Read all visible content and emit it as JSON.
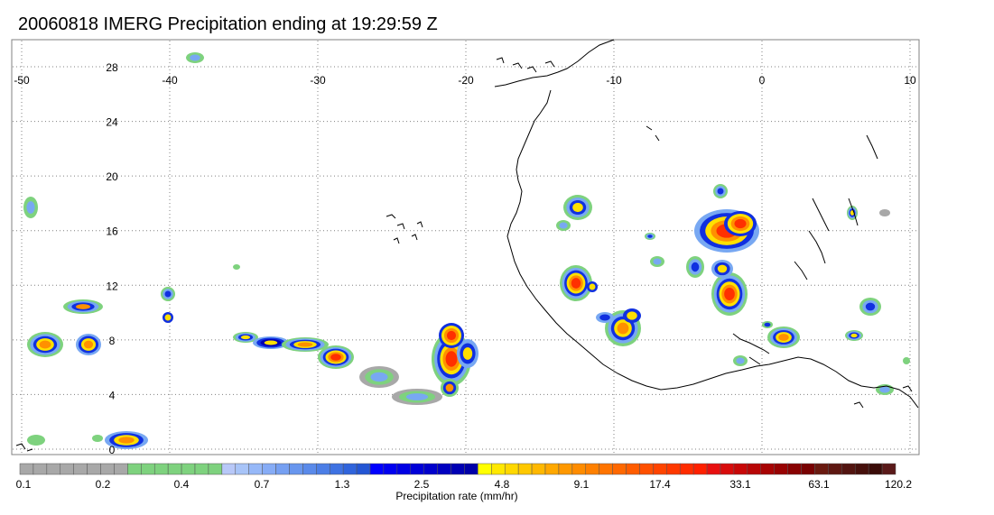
{
  "title": "20060818 IMERG Precipitation ending at 19:29:59 Z",
  "map": {
    "lon_labels": [
      "-50",
      "-40",
      "-30",
      "-20",
      "-10",
      "0",
      "10"
    ],
    "lat_labels": [
      "28",
      "24",
      "20",
      "16",
      "12",
      "8",
      "4",
      "0"
    ],
    "lon_range": [
      -50,
      10
    ],
    "lat_range": [
      -0.5,
      29.5
    ],
    "grid": "dotted"
  },
  "colorbar": {
    "label": "Precipitation rate (mm/hr)",
    "tick_labels": [
      "0.1",
      "0.2",
      "0.4",
      "0.7",
      "1.3",
      "2.5",
      "4.8",
      "9.1",
      "17.4",
      "33.1",
      "63.1",
      "120.2"
    ],
    "colors": [
      "#a8a8a8",
      "#a8a8a8",
      "#a8a8a8",
      "#a8a8a8",
      "#a8a8a8",
      "#a8a8a8",
      "#a8a8a8",
      "#a8a8a8",
      "#7ed27e",
      "#7ed27e",
      "#7ed27e",
      "#7ed27e",
      "#7ed27e",
      "#7ed27e",
      "#7ed27e",
      "#b8c8f8",
      "#a8c4f8",
      "#96b8f8",
      "#86acf6",
      "#76a0f2",
      "#6896ee",
      "#5a8aea",
      "#4c7ee6",
      "#3e72e2",
      "#3064dc",
      "#2456d4",
      "#0000ff",
      "#0000f0",
      "#0000e4",
      "#0000d8",
      "#0000cc",
      "#0000c0",
      "#0000b4",
      "#0000a8",
      "#ffff00",
      "#ffe800",
      "#ffd800",
      "#ffc800",
      "#ffb800",
      "#ffa800",
      "#ff9800",
      "#ff8c00",
      "#ff8000",
      "#ff7400",
      "#ff6800",
      "#ff5c00",
      "#ff5000",
      "#ff4400",
      "#ff3800",
      "#ff2c00",
      "#ff2000",
      "#e81010",
      "#d80c0c",
      "#c80808",
      "#b80606",
      "#a80404",
      "#980303",
      "#880202",
      "#780202",
      "#6a1a10",
      "#5e1812",
      "#521410",
      "#46100c",
      "#3a0c08",
      "#5a1a1a"
    ]
  },
  "colors": {
    "coastline": "#000000",
    "grid": "#808080",
    "frame": "#808080"
  }
}
